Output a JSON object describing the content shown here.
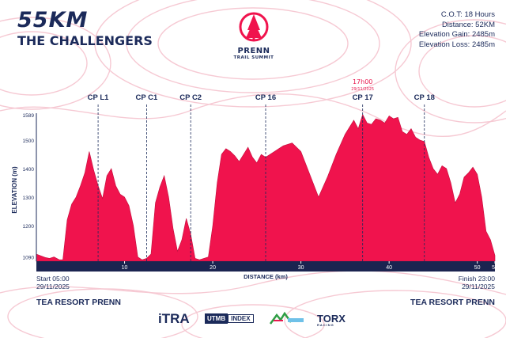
{
  "header": {
    "distance_title": "55KM",
    "race_name": "THE CHALLENGERS"
  },
  "logo": {
    "name": "PRENN",
    "tagline": "TRAIL SUMMIT"
  },
  "stats": {
    "cot": "C.O.T: 18 Hours",
    "distance": "Distance: 52KM",
    "gain": "Elevation Gain: 2485m",
    "loss": "Elevation Loss: 2485m"
  },
  "checkpoints": [
    {
      "label": "CP L1",
      "km": 7
    },
    {
      "label": "CP C1",
      "km": 12.5
    },
    {
      "label": "CP C2",
      "km": 17.5
    },
    {
      "label": "CP 16",
      "km": 26
    },
    {
      "label": "CP 17",
      "km": 37,
      "cutoff_time": "17h00",
      "cutoff_date": "29/11/2025"
    },
    {
      "label": "CP 18",
      "km": 44
    }
  ],
  "start": {
    "label": "Start 05:00",
    "date": "29/11/2025",
    "place": "TEA RESORT PRENN"
  },
  "finish": {
    "label": "Finish 23:00",
    "date": "29/11/2025",
    "place": "TEA RESORT PRENN"
  },
  "sponsors": [
    "iTRA",
    "UTMB",
    "INDEX",
    "TORX",
    "RACING"
  ],
  "colors": {
    "profile": "#f0134d",
    "navy": "#1b2a5a",
    "axis_bar": "#1b2450",
    "contour": "#f6c9d3"
  },
  "chart_data": {
    "type": "area",
    "ylabel": "ELEVATION (m)",
    "xlabel": "DISTANCE (km)",
    "xlim": [
      0,
      52
    ],
    "ylim": [
      1075,
      1589
    ],
    "yticks": [
      1090,
      1200,
      1300,
      1400,
      1500,
      1589
    ],
    "xticks": [
      10,
      20,
      30,
      40,
      50,
      52
    ],
    "grid": false,
    "x": [
      0,
      1,
      1.5,
      2,
      2.6,
      3,
      3.5,
      4,
      4.5,
      5,
      5.5,
      6,
      6.5,
      7,
      7.5,
      8,
      8.5,
      9,
      9.5,
      10,
      10.5,
      11,
      11.5,
      12,
      12.5,
      13,
      13.5,
      14,
      14.5,
      15,
      15.5,
      16,
      16.5,
      17,
      17.5,
      18,
      18.5,
      19,
      19.5,
      20,
      20.5,
      21,
      21.5,
      22,
      22.5,
      23,
      23.5,
      24,
      24.5,
      25,
      25.5,
      26,
      26.5,
      27,
      27.5,
      28,
      29,
      30,
      31,
      32,
      33,
      34,
      35,
      36,
      36.5,
      37,
      37.5,
      38,
      38.5,
      39,
      39.5,
      40,
      40.5,
      41,
      41.5,
      42,
      42.5,
      43,
      43.5,
      44,
      44.5,
      45,
      45.5,
      46,
      46.5,
      47,
      47.5,
      48,
      48.5,
      49,
      49.5,
      50,
      50.5,
      51,
      51.5,
      52
    ],
    "y": [
      1100,
      1088,
      1085,
      1090,
      1080,
      1080,
      1220,
      1275,
      1300,
      1340,
      1385,
      1460,
      1395,
      1340,
      1295,
      1375,
      1400,
      1340,
      1310,
      1300,
      1270,
      1200,
      1090,
      1080,
      1085,
      1100,
      1280,
      1335,
      1375,
      1300,
      1190,
      1110,
      1150,
      1225,
      1170,
      1085,
      1080,
      1085,
      1090,
      1200,
      1350,
      1450,
      1470,
      1460,
      1445,
      1425,
      1450,
      1475,
      1440,
      1420,
      1450,
      1440,
      1450,
      1460,
      1470,
      1480,
      1490,
      1460,
      1380,
      1300,
      1370,
      1450,
      1520,
      1570,
      1540,
      1590,
      1560,
      1555,
      1575,
      1570,
      1560,
      1585,
      1575,
      1580,
      1530,
      1520,
      1540,
      1510,
      1500,
      1495,
      1440,
      1400,
      1380,
      1410,
      1400,
      1350,
      1280,
      1310,
      1370,
      1385,
      1405,
      1380,
      1300,
      1180,
      1150,
      1095
    ]
  }
}
